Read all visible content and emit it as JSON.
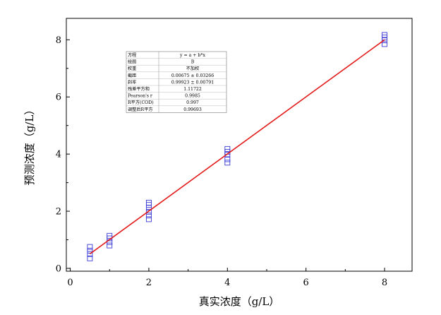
{
  "chart_data": {
    "type": "scatter",
    "xlabel": "真实浓度（g/L）",
    "ylabel": "预测浓度（g/L）",
    "xlim": [
      -0.1,
      8.7
    ],
    "ylim": [
      -0.1,
      8.75
    ],
    "xticks": [
      0,
      2,
      4,
      6,
      8
    ],
    "yticks": [
      0,
      2,
      4,
      6,
      8
    ],
    "xtick_labels": [
      "0",
      "2",
      "4",
      "6",
      "8"
    ],
    "ytick_labels": [
      "0",
      "2",
      "4",
      "6",
      "8"
    ],
    "grid": false,
    "colors": {
      "points": "#3b3bd6",
      "fit_line": "#e31b1b",
      "axes": "#000000"
    },
    "points": {
      "marker": "square",
      "x": [
        0.5,
        0.5,
        0.5,
        0.5,
        1,
        1,
        1,
        1,
        2,
        2,
        2,
        2,
        2,
        2,
        4,
        4,
        4,
        4,
        4,
        8,
        8,
        8,
        8
      ],
      "y": [
        0.35,
        0.5,
        0.62,
        0.75,
        0.8,
        0.92,
        1.05,
        1.14,
        1.72,
        1.85,
        1.98,
        2.12,
        2.22,
        2.3,
        3.7,
        3.82,
        3.98,
        4.08,
        4.18,
        7.85,
        7.98,
        8.08,
        8.17
      ]
    },
    "fit_line": {
      "intercept": 0.00675,
      "slope": 0.99923,
      "x_range": [
        0.5,
        8
      ]
    },
    "stats_table": {
      "rows": [
        [
          "方程",
          "y = a + b*x"
        ],
        [
          "绘图",
          "B"
        ],
        [
          "权重",
          "不加权"
        ],
        [
          "截距",
          "0.00675 ± 0.03266"
        ],
        [
          "斜率",
          "0.99923 ± 0.00791"
        ],
        [
          "残差平方和",
          "1.11722"
        ],
        [
          "Pearson's r",
          "0.9985"
        ],
        [
          "R平方(COD)",
          "0.997"
        ],
        [
          "调整后R平方",
          "0.99693"
        ]
      ]
    }
  }
}
